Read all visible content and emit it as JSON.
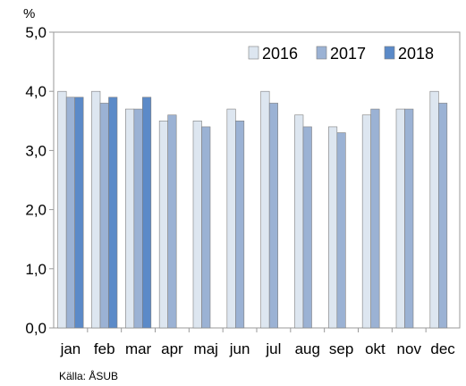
{
  "chart_data": {
    "type": "bar",
    "unit": "%",
    "categories": [
      "jan",
      "feb",
      "mar",
      "apr",
      "maj",
      "jun",
      "jul",
      "aug",
      "sep",
      "okt",
      "nov",
      "dec"
    ],
    "series": [
      {
        "name": "2016",
        "color": "#dde6f0",
        "values": [
          4.0,
          4.0,
          3.7,
          3.5,
          3.5,
          3.7,
          4.0,
          3.6,
          3.4,
          3.6,
          3.7,
          4.0
        ]
      },
      {
        "name": "2017",
        "color": "#9bb2d4",
        "values": [
          3.9,
          3.8,
          3.7,
          3.6,
          3.4,
          3.5,
          3.8,
          3.4,
          3.3,
          3.7,
          3.7,
          3.8
        ]
      },
      {
        "name": "2018",
        "color": "#5b8ac8",
        "values": [
          3.9,
          3.9,
          3.9,
          null,
          null,
          null,
          null,
          null,
          null,
          null,
          null,
          null
        ]
      }
    ],
    "ylim": [
      0,
      5
    ],
    "yticks": [
      "0,0",
      "1,0",
      "2,0",
      "3,0",
      "4,0",
      "5,0"
    ],
    "grid": false,
    "legend_position": "top-right",
    "source": "Källa: ÅSUB"
  }
}
